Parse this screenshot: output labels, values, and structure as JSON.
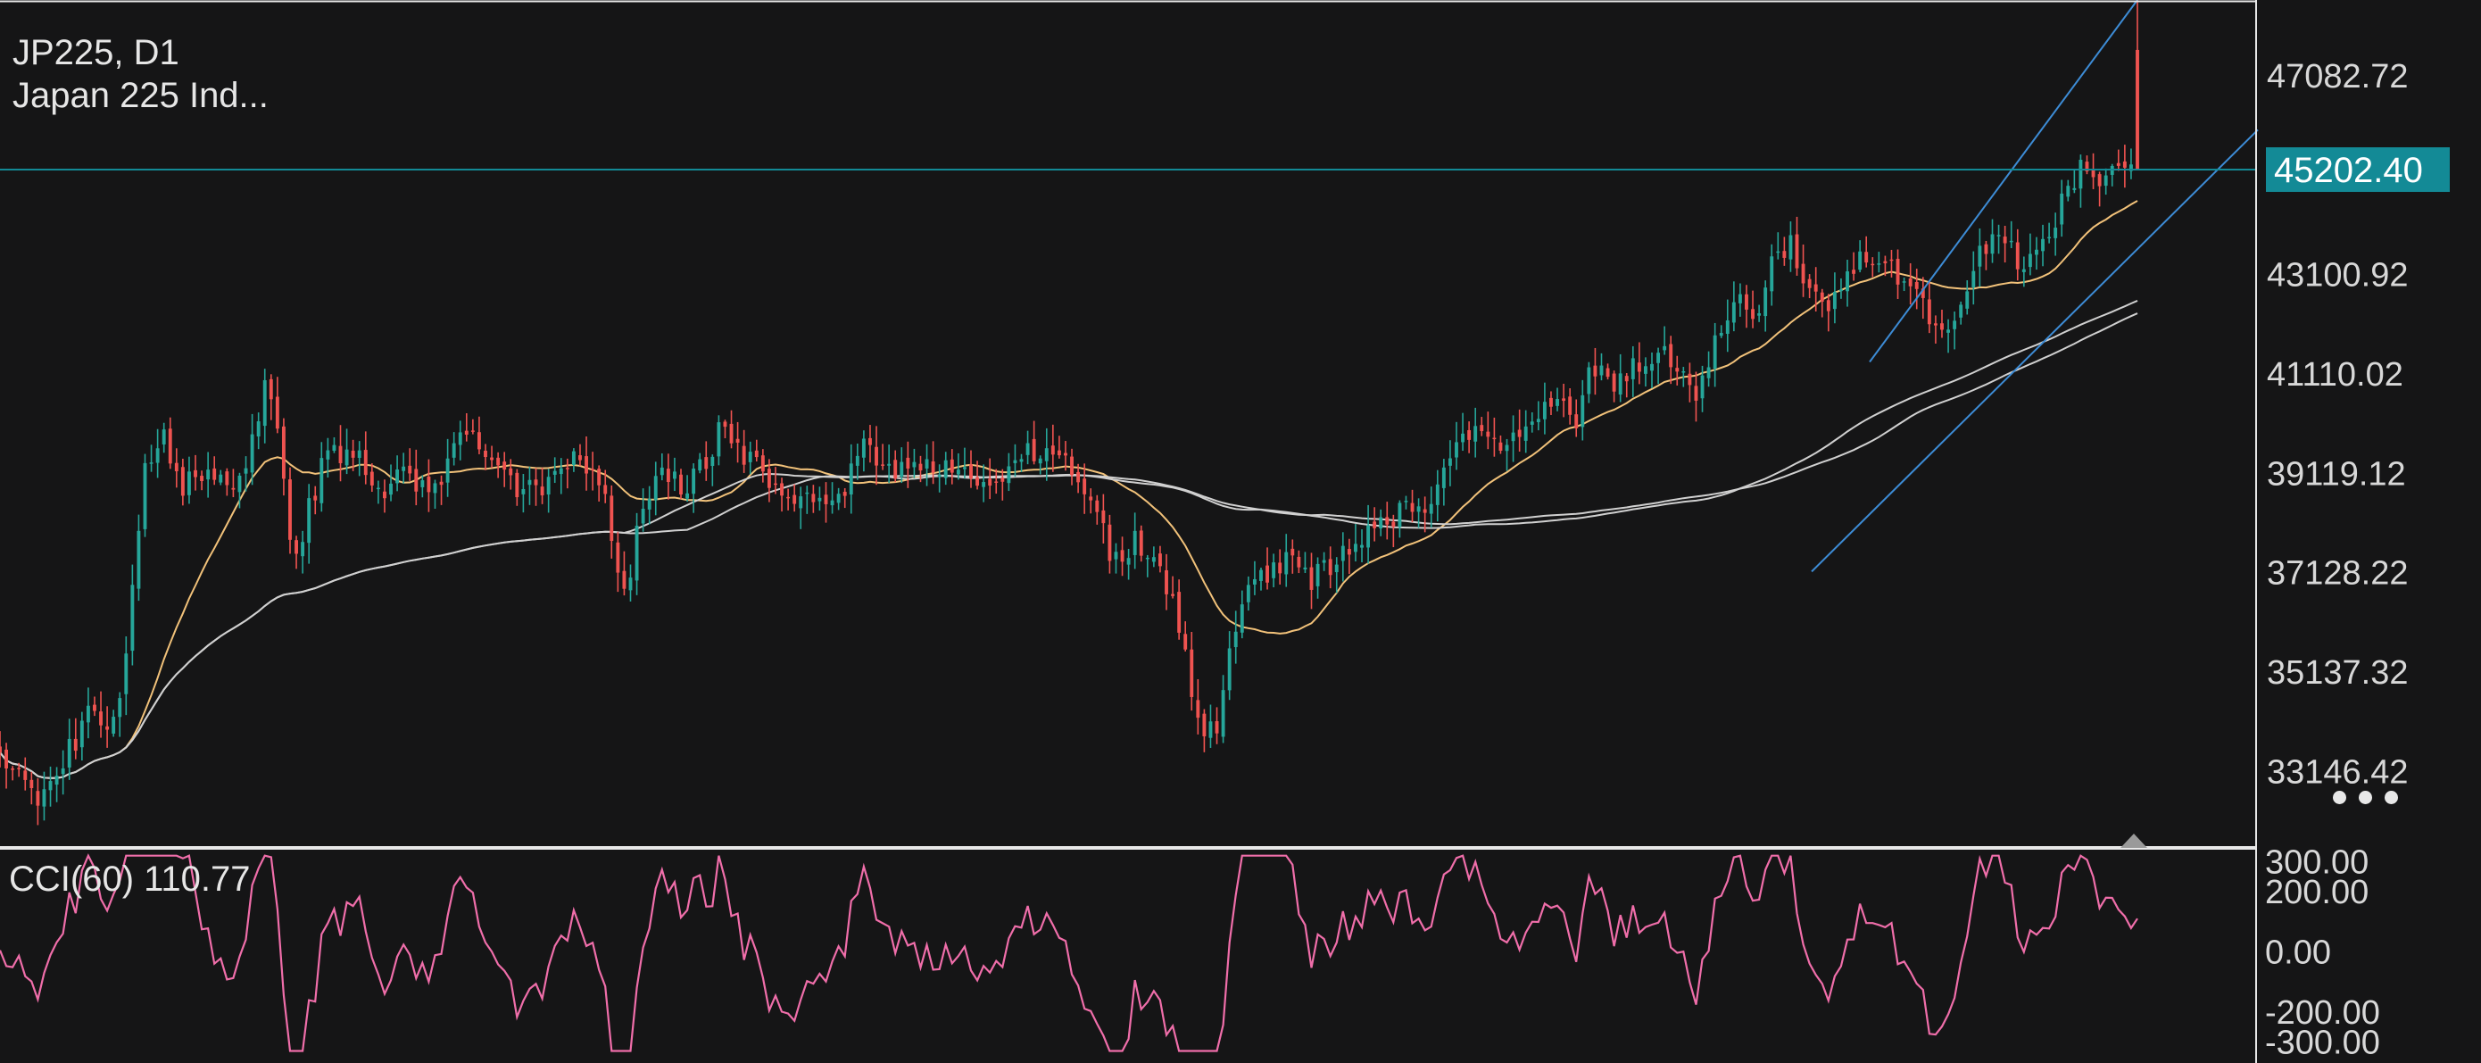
{
  "header": {
    "symbol_line": "JP225, D1",
    "name_line": "Japan 225 Ind..."
  },
  "current_price": {
    "label": "45202.40",
    "value": 45202.4,
    "color": "#138a96"
  },
  "colors": {
    "background": "#151516",
    "bull": "#26a69a",
    "bear": "#ef5350",
    "ma_fast": "#f2c27a",
    "ma_slow": "#d0d0d0",
    "channel": "#3d8cd6",
    "cci": "#f06eaa",
    "grid_line": "#e8e8e8"
  },
  "chart_data": [
    {
      "type": "candlestick",
      "symbol": "JP225",
      "timeframe": "D1",
      "ylim": [
        31650,
        48600
      ],
      "y_ticks": [
        47082.72,
        43100.92,
        41110.02,
        39119.12,
        37128.22,
        35137.32,
        33146.42
      ],
      "y_tick_labels": [
        "47082.72",
        "43100.92",
        "41110.02",
        "39119.12",
        "37128.22",
        "35137.32",
        "33146.42"
      ],
      "bar_count": 340,
      "close_anchors": [
        [
          0,
          33450
        ],
        [
          10,
          33000
        ],
        [
          25,
          33200
        ],
        [
          40,
          32300
        ],
        [
          50,
          33000
        ],
        [
          60,
          32600
        ],
        [
          72,
          33400
        ],
        [
          88,
          33900
        ],
        [
          105,
          34400
        ],
        [
          120,
          34000
        ],
        [
          138,
          34600
        ],
        [
          160,
          39000
        ],
        [
          182,
          40000
        ],
        [
          200,
          38800
        ],
        [
          225,
          39150
        ],
        [
          255,
          38850
        ],
        [
          275,
          39000
        ],
        [
          300,
          41300
        ],
        [
          330,
          37300
        ],
        [
          346,
          38400
        ],
        [
          365,
          39500
        ],
        [
          400,
          39500
        ],
        [
          420,
          38500
        ],
        [
          445,
          39100
        ],
        [
          485,
          38600
        ],
        [
          520,
          40000
        ],
        [
          560,
          39000
        ],
        [
          600,
          38700
        ],
        [
          625,
          39400
        ],
        [
          650,
          39300
        ],
        [
          675,
          39100
        ],
        [
          690,
          37000
        ],
        [
          700,
          36700
        ],
        [
          718,
          38200
        ],
        [
          740,
          39300
        ],
        [
          765,
          38700
        ],
        [
          790,
          39400
        ],
        [
          805,
          39900
        ],
        [
          830,
          39600
        ],
        [
          860,
          38900
        ],
        [
          900,
          38700
        ],
        [
          935,
          38300
        ],
        [
          968,
          39900
        ],
        [
          990,
          39000
        ],
        [
          1010,
          39300
        ],
        [
          1050,
          39100
        ],
        [
          1080,
          39200
        ],
        [
          1110,
          38700
        ],
        [
          1140,
          39400
        ],
        [
          1165,
          39600
        ],
        [
          1190,
          39500
        ],
        [
          1215,
          38800
        ],
        [
          1235,
          38000
        ],
        [
          1255,
          37100
        ],
        [
          1270,
          37800
        ],
        [
          1295,
          37300
        ],
        [
          1315,
          36400
        ],
        [
          1335,
          34900
        ],
        [
          1350,
          33800
        ],
        [
          1365,
          34200
        ],
        [
          1372,
          35000
        ],
        [
          1395,
          36600
        ],
        [
          1420,
          37100
        ],
        [
          1445,
          37400
        ],
        [
          1470,
          37000
        ],
        [
          1500,
          37300
        ],
        [
          1525,
          37900
        ],
        [
          1552,
          38100
        ],
        [
          1575,
          38400
        ],
        [
          1597,
          38200
        ],
        [
          1617,
          39100
        ],
        [
          1650,
          40000
        ],
        [
          1685,
          39500
        ],
        [
          1710,
          40000
        ],
        [
          1742,
          40600
        ],
        [
          1765,
          40000
        ],
        [
          1783,
          41300
        ],
        [
          1810,
          41000
        ],
        [
          1840,
          41300
        ],
        [
          1862,
          41600
        ],
        [
          1882,
          41000
        ],
        [
          1900,
          40600
        ],
        [
          1920,
          41700
        ],
        [
          1945,
          42600
        ],
        [
          1965,
          42300
        ],
        [
          1985,
          43200
        ],
        [
          2005,
          43700
        ],
        [
          2020,
          43000
        ],
        [
          2050,
          42400
        ],
        [
          2085,
          43400
        ],
        [
          2110,
          43500
        ],
        [
          2140,
          42800
        ],
        [
          2175,
          41900
        ],
        [
          2200,
          42500
        ],
        [
          2220,
          43600
        ],
        [
          2245,
          43700
        ],
        [
          2270,
          43200
        ],
        [
          2290,
          43600
        ],
        [
          2310,
          44600
        ],
        [
          2333,
          45200
        ],
        [
          2350,
          44700
        ],
        [
          2370,
          45400
        ],
        [
          2388,
          45300
        ],
        [
          2395,
          45202.4
        ]
      ],
      "last_bar": {
        "open": 47600,
        "high": 48600,
        "low": 45202.4,
        "close": 45202.4
      },
      "moving_averages": [
        {
          "id": "ma_fast",
          "period": 20,
          "color": "#f2c27a"
        },
        {
          "id": "ma_slow_1",
          "period": 100,
          "color": "#d0d0d0"
        },
        {
          "id": "ma_slow_2",
          "period": 110,
          "color": "#d0d0d0"
        }
      ],
      "channel": {
        "upper": [
          [
            2095,
            41350
          ],
          [
            2395,
            48600
          ]
        ],
        "lower": [
          [
            2030,
            37150
          ],
          [
            2530,
            46000
          ]
        ],
        "color": "#3d8cd6"
      },
      "horizontal_line": {
        "value": 45202.4,
        "color": "#138a96"
      }
    },
    {
      "type": "line",
      "indicator": "CCI",
      "period": 60,
      "legend": "CCI(60) 110.77",
      "last_value": 110.77,
      "ylim": [
        -370,
        340
      ],
      "y_ticks": [
        300,
        200,
        0,
        -200,
        -300
      ],
      "y_tick_labels": [
        "300.00",
        "200.00",
        "0.00",
        "-200.00",
        "-300.00"
      ],
      "color": "#f06eaa"
    }
  ]
}
